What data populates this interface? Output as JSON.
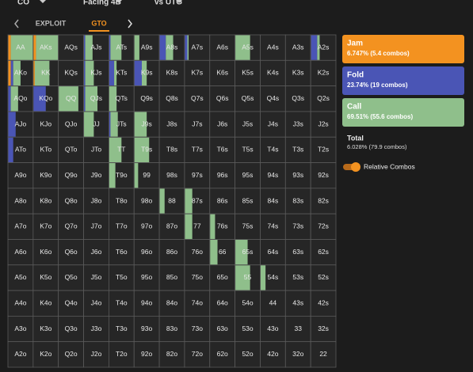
{
  "header": {
    "filters": [
      "CO",
      "Facing 4B",
      "vs UTG"
    ]
  },
  "tabs": {
    "items": [
      "EXPLOIT",
      "GTO"
    ],
    "active": 1
  },
  "grid": {
    "labels": [
      [
        "AA",
        "AKs",
        "AQs",
        "AJs",
        "ATs",
        "A9s",
        "A8s",
        "A7s",
        "A6s",
        "A5s",
        "A4s",
        "A3s",
        "A2s"
      ],
      [
        "AKo",
        "KK",
        "KQs",
        "KJs",
        "KTs",
        "K9s",
        "K8s",
        "K7s",
        "K6s",
        "K5s",
        "K4s",
        "K3s",
        "K2s"
      ],
      [
        "AQo",
        "KQo",
        "QQ",
        "QJs",
        "QTs",
        "Q9s",
        "Q8s",
        "Q7s",
        "Q6s",
        "Q5s",
        "Q4s",
        "Q3s",
        "Q2s"
      ],
      [
        "AJo",
        "KJo",
        "QJo",
        "JJ",
        "JTs",
        "J9s",
        "J8s",
        "J7s",
        "J6s",
        "J5s",
        "J4s",
        "J3s",
        "J2s"
      ],
      [
        "ATo",
        "KTo",
        "QTo",
        "JTo",
        "TT",
        "T9s",
        "T8s",
        "T7s",
        "T6s",
        "T5s",
        "T4s",
        "T3s",
        "T2s"
      ],
      [
        "A9o",
        "K9o",
        "Q9o",
        "J9o",
        "T9o",
        "99",
        "98s",
        "97s",
        "96s",
        "95s",
        "94s",
        "93s",
        "92s"
      ],
      [
        "A8o",
        "K8o",
        "Q8o",
        "J8o",
        "T8o",
        "98o",
        "88",
        "87s",
        "86s",
        "85s",
        "84s",
        "83s",
        "82s"
      ],
      [
        "A7o",
        "K7o",
        "Q7o",
        "J7o",
        "T7o",
        "97o",
        "87o",
        "77",
        "76s",
        "75s",
        "74s",
        "73s",
        "72s"
      ],
      [
        "A6o",
        "K6o",
        "Q6o",
        "J6o",
        "T6o",
        "96o",
        "86o",
        "76o",
        "66",
        "65s",
        "64s",
        "63s",
        "62s"
      ],
      [
        "A5o",
        "K5o",
        "Q5o",
        "J5o",
        "T5o",
        "95o",
        "85o",
        "75o",
        "65o",
        "55",
        "54s",
        "53s",
        "52s"
      ],
      [
        "A4o",
        "K4o",
        "Q4o",
        "J4o",
        "T4o",
        "94o",
        "84o",
        "74o",
        "64o",
        "54o",
        "44",
        "43s",
        "42s"
      ],
      [
        "A3o",
        "K3o",
        "Q3o",
        "J3o",
        "T3o",
        "93o",
        "83o",
        "73o",
        "63o",
        "53o",
        "43o",
        "33",
        "32s"
      ],
      [
        "A2o",
        "K2o",
        "Q2o",
        "J2o",
        "T2o",
        "92o",
        "82o",
        "72o",
        "62o",
        "52o",
        "42o",
        "32o",
        "22"
      ]
    ],
    "mix": {
      "AA": [
        0.1,
        0,
        0.9
      ],
      "AKs": [
        0.1,
        0,
        0.9
      ],
      "AJs": [
        0,
        0.05,
        0.3
      ],
      "ATs": [
        0,
        0.05,
        0.45
      ],
      "A9s": [
        0,
        0,
        0.2
      ],
      "A8s": [
        0,
        0.25,
        0.3
      ],
      "A7s": [
        0,
        0.1,
        0.05
      ],
      "A5s": [
        0,
        0,
        0.6
      ],
      "A2s": [
        0,
        0.25,
        0.1
      ],
      "AKo": [
        0.1,
        0.1,
        0.3
      ],
      "KK": [
        0.05,
        0,
        0.6
      ],
      "KJs": [
        0,
        0.05,
        0.35
      ],
      "KTs": [
        0,
        0.2,
        0.1
      ],
      "K9s": [
        0,
        0.3,
        0.2
      ],
      "AQo": [
        0,
        0.1,
        0.3
      ],
      "KQo": [
        0,
        0.5,
        0
      ],
      "QQ": [
        0,
        0,
        0.8
      ],
      "QJs": [
        0,
        0.05,
        0.5
      ],
      "QTs": [
        0,
        0,
        0.3
      ],
      "AJo": [
        0,
        0.3,
        0
      ],
      "JJ": [
        0,
        0,
        0.4
      ],
      "JTs": [
        0,
        0.05,
        0.3
      ],
      "J9s": [
        0,
        0,
        0.5
      ],
      "ATo": [
        0,
        0.2,
        0
      ],
      "TT": [
        0,
        0,
        0.5
      ],
      "T9s": [
        0,
        0,
        0.6
      ],
      "T9o": [
        0,
        0,
        0.25
      ],
      "99": [
        0,
        0,
        0.15
      ],
      "88": [
        0,
        0,
        0.2
      ],
      "87s": [
        0,
        0,
        0.3
      ],
      "77": [
        0,
        0,
        0.3
      ],
      "76s": [
        0,
        0,
        0.2
      ],
      "66": [
        0,
        0,
        0.3
      ],
      "65s": [
        0,
        0,
        0.5
      ],
      "55": [
        0,
        0,
        0.6
      ],
      "54s": [
        0,
        0,
        0.2
      ]
    }
  },
  "legend": {
    "actions": [
      {
        "name": "Jam",
        "color": "#f39220",
        "detail": "6.747% (5.4 combos)"
      },
      {
        "name": "Fold",
        "color": "#4a55b5",
        "detail": "23.74% (19 combos)"
      },
      {
        "name": "Call",
        "color": "#8fbf8b",
        "detail": "69.51% (55.6 combos)"
      }
    ],
    "total": {
      "label": "Total",
      "detail": "6.028% (79.9 combos)"
    },
    "toggle": {
      "label": "Relative Combos",
      "on": true
    }
  }
}
